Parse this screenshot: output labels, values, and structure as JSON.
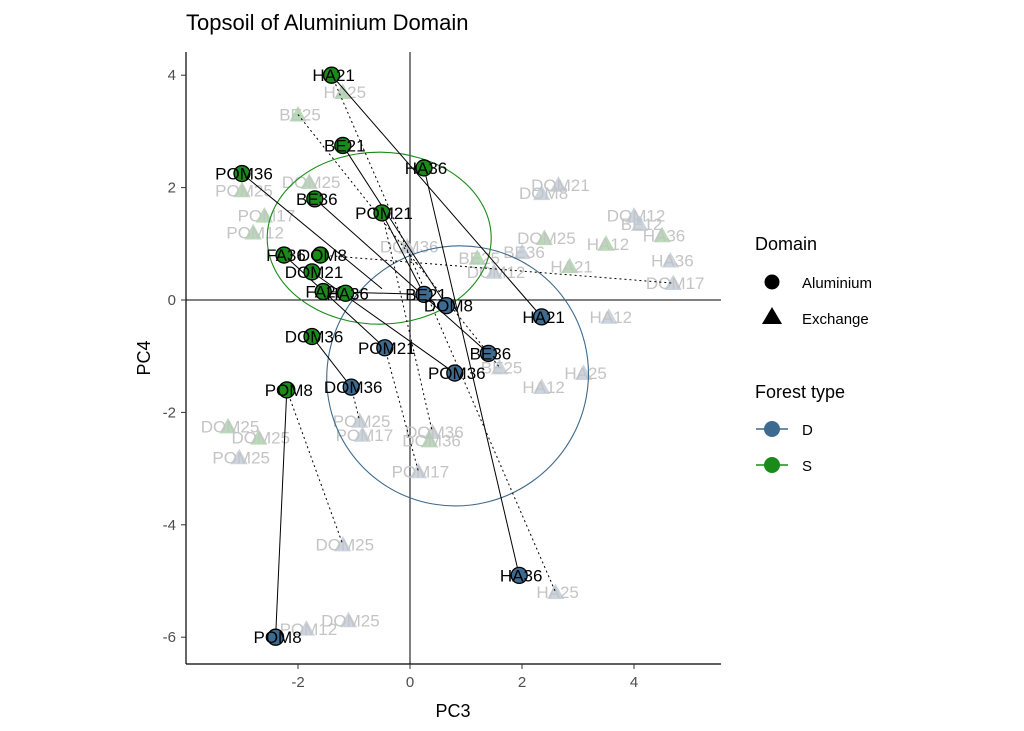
{
  "chart_data": {
    "type": "scatter",
    "title": "Topsoil of Aluminium Domain",
    "xlabel": "PC3",
    "ylabel": "PC4",
    "xlim": [
      -4.0,
      5.5
    ],
    "ylim": [
      -6.45,
      4.35
    ],
    "xticks": [
      -2,
      0,
      2,
      4
    ],
    "yticks": [
      -6,
      -4,
      -2,
      0,
      2,
      4
    ],
    "grid": false,
    "reference_lines": {
      "x": 0,
      "y": 0
    },
    "legend": [
      {
        "title": "Domain",
        "items": [
          {
            "label": "Aluminium",
            "shape": "circle"
          },
          {
            "label": "Exchange",
            "shape": "triangle"
          }
        ]
      },
      {
        "title": "Forest type",
        "items": [
          {
            "label": "D",
            "color": "#3d6a8e"
          },
          {
            "label": "S",
            "color": "#1a8a1a"
          }
        ]
      }
    ],
    "legend_placement": "right",
    "colors": {
      "D": "#3d6a8e",
      "S": "#1a8a1a"
    },
    "ellipses": [
      {
        "group": "S",
        "center": [
          -0.55,
          1.1
        ],
        "rx": 2.0,
        "ry": 1.53,
        "angle": 0
      },
      {
        "group": "D",
        "center": [
          0.85,
          -1.35
        ],
        "rx": 2.35,
        "ry": 2.3,
        "angle": -35
      }
    ],
    "highlighted_points": [
      {
        "label": "HA21",
        "x": -1.4,
        "y": 4.0,
        "forest": "S",
        "domain": "Aluminium"
      },
      {
        "label": "BE21",
        "x": -1.2,
        "y": 2.75,
        "forest": "S",
        "domain": "Aluminium"
      },
      {
        "label": "HA36",
        "x": 0.25,
        "y": 2.35,
        "forest": "S",
        "domain": "Aluminium"
      },
      {
        "label": "POM36",
        "x": -3.0,
        "y": 2.25,
        "forest": "S",
        "domain": "Aluminium"
      },
      {
        "label": "BE36",
        "x": -1.7,
        "y": 1.8,
        "forest": "S",
        "domain": "Aluminium"
      },
      {
        "label": "POM21",
        "x": -0.5,
        "y": 1.55,
        "forest": "S",
        "domain": "Aluminium"
      },
      {
        "label": "FA36",
        "x": -2.25,
        "y": 0.8,
        "forest": "S",
        "domain": "Aluminium"
      },
      {
        "label": "DOM8",
        "x": -1.6,
        "y": 0.8,
        "forest": "S",
        "domain": "Aluminium"
      },
      {
        "label": "DOM21",
        "x": -1.75,
        "y": 0.5,
        "forest": "S",
        "domain": "Aluminium"
      },
      {
        "label": "FA21",
        "x": -1.55,
        "y": 0.15,
        "forest": "S",
        "domain": "Aluminium"
      },
      {
        "label": "HA36",
        "x": -1.15,
        "y": 0.12,
        "forest": "S",
        "domain": "Aluminium"
      },
      {
        "label": "DOM36",
        "x": -1.75,
        "y": -0.65,
        "forest": "S",
        "domain": "Aluminium"
      },
      {
        "label": "POM8",
        "x": -2.2,
        "y": -1.6,
        "forest": "S",
        "domain": "Aluminium"
      },
      {
        "label": "BE21",
        "x": 0.25,
        "y": 0.1,
        "forest": "D",
        "domain": "Aluminium"
      },
      {
        "label": "DOM8",
        "x": 0.65,
        "y": -0.1,
        "forest": "D",
        "domain": "Aluminium"
      },
      {
        "label": "HA21",
        "x": 2.35,
        "y": -0.3,
        "forest": "D",
        "domain": "Aluminium"
      },
      {
        "label": "POM21",
        "x": -0.45,
        "y": -0.85,
        "forest": "D",
        "domain": "Aluminium"
      },
      {
        "label": "BE36",
        "x": 1.4,
        "y": -0.95,
        "forest": "D",
        "domain": "Aluminium"
      },
      {
        "label": "POM36",
        "x": 0.8,
        "y": -1.3,
        "forest": "D",
        "domain": "Aluminium"
      },
      {
        "label": "DOM36",
        "x": -1.05,
        "y": -1.55,
        "forest": "D",
        "domain": "Aluminium"
      },
      {
        "label": "HA36",
        "x": 1.95,
        "y": -4.9,
        "forest": "D",
        "domain": "Aluminium"
      },
      {
        "label": "POM8",
        "x": -2.4,
        "y": -6.0,
        "forest": "D",
        "domain": "Aluminium"
      }
    ],
    "faded_points": [
      {
        "label": "HA25",
        "x": -1.2,
        "y": 3.7,
        "forest": "S",
        "domain": "Exchange"
      },
      {
        "label": "BE25",
        "x": -2.0,
        "y": 3.3,
        "forest": "S",
        "domain": "Exchange"
      },
      {
        "label": "DOM25",
        "x": -1.8,
        "y": 2.1,
        "forest": "S",
        "domain": "Exchange"
      },
      {
        "label": "POM25",
        "x": -3.0,
        "y": 1.95,
        "forest": "S",
        "domain": "Exchange"
      },
      {
        "label": "POM17",
        "x": -2.6,
        "y": 1.5,
        "forest": "S",
        "domain": "Exchange"
      },
      {
        "label": "POM12",
        "x": -2.8,
        "y": 1.2,
        "forest": "S",
        "domain": "Exchange"
      },
      {
        "label": "DOM21",
        "x": 2.65,
        "y": 2.05,
        "forest": "D",
        "domain": "Exchange"
      },
      {
        "label": "DOM8",
        "x": 2.35,
        "y": 1.9,
        "forest": "D",
        "domain": "Exchange"
      },
      {
        "label": "DOM12",
        "x": 4.0,
        "y": 1.5,
        "forest": "D",
        "domain": "Exchange"
      },
      {
        "label": "BE12",
        "x": 4.1,
        "y": 1.35,
        "forest": "D",
        "domain": "Exchange"
      },
      {
        "label": "HA36",
        "x": 4.5,
        "y": 1.15,
        "forest": "S",
        "domain": "Exchange"
      },
      {
        "label": "HA12",
        "x": 3.5,
        "y": 1.0,
        "forest": "S",
        "domain": "Exchange"
      },
      {
        "label": "HA36",
        "x": 4.65,
        "y": 0.7,
        "forest": "D",
        "domain": "Exchange"
      },
      {
        "label": "DOM17",
        "x": 4.7,
        "y": 0.3,
        "forest": "D",
        "domain": "Exchange"
      },
      {
        "label": "HA21",
        "x": 2.85,
        "y": 0.6,
        "forest": "S",
        "domain": "Exchange"
      },
      {
        "label": "BE36",
        "x": 2.0,
        "y": 0.85,
        "forest": "D",
        "domain": "Exchange"
      },
      {
        "label": "BE25",
        "x": 1.2,
        "y": 0.75,
        "forest": "S",
        "domain": "Exchange"
      },
      {
        "label": "DOM25",
        "x": 2.4,
        "y": 1.1,
        "forest": "S",
        "domain": "Exchange"
      },
      {
        "label": "DOM36",
        "x": -0.05,
        "y": 0.95,
        "forest": "D",
        "domain": "Exchange"
      },
      {
        "label": "DOM12",
        "x": 1.5,
        "y": 0.5,
        "forest": "D",
        "domain": "Exchange"
      },
      {
        "label": "HA12",
        "x": 3.55,
        "y": -0.3,
        "forest": "D",
        "domain": "Exchange"
      },
      {
        "label": "HA25",
        "x": 3.1,
        "y": -1.3,
        "forest": "D",
        "domain": "Exchange"
      },
      {
        "label": "HA12",
        "x": 2.35,
        "y": -1.55,
        "forest": "D",
        "domain": "Exchange"
      },
      {
        "label": "BE25",
        "x": 1.6,
        "y": -1.2,
        "forest": "D",
        "domain": "Exchange"
      },
      {
        "label": "POM25",
        "x": -0.9,
        "y": -2.15,
        "forest": "D",
        "domain": "Exchange"
      },
      {
        "label": "POM17",
        "x": -0.85,
        "y": -2.4,
        "forest": "D",
        "domain": "Exchange"
      },
      {
        "label": "DOM36",
        "x": 0.4,
        "y": -2.35,
        "forest": "D",
        "domain": "Exchange"
      },
      {
        "label": "DOM36",
        "x": 0.35,
        "y": -2.5,
        "forest": "S",
        "domain": "Exchange"
      },
      {
        "label": "POM17",
        "x": 0.15,
        "y": -3.05,
        "forest": "D",
        "domain": "Exchange"
      },
      {
        "label": "DOM25",
        "x": -3.25,
        "y": -2.25,
        "forest": "S",
        "domain": "Exchange"
      },
      {
        "label": "DOM25",
        "x": -2.7,
        "y": -2.45,
        "forest": "S",
        "domain": "Exchange"
      },
      {
        "label": "POM25",
        "x": -3.05,
        "y": -2.8,
        "forest": "D",
        "domain": "Exchange"
      },
      {
        "label": "DOM25",
        "x": -1.2,
        "y": -4.35,
        "forest": "D",
        "domain": "Exchange"
      },
      {
        "label": "HA25",
        "x": 2.6,
        "y": -5.2,
        "forest": "D",
        "domain": "Exchange"
      },
      {
        "label": "DOM25",
        "x": -1.1,
        "y": -5.7,
        "forest": "D",
        "domain": "Exchange"
      },
      {
        "label": "POM12",
        "x": -1.85,
        "y": -5.85,
        "forest": "D",
        "domain": "Exchange"
      }
    ],
    "solid_connections": [
      [
        [
          -1.4,
          4.0
        ],
        [
          2.35,
          -0.3
        ]
      ],
      [
        [
          -1.2,
          2.75
        ],
        [
          0.65,
          -0.1
        ]
      ],
      [
        [
          0.25,
          2.35
        ],
        [
          1.95,
          -4.9
        ]
      ],
      [
        [
          -3.0,
          2.25
        ],
        [
          -0.5,
          0.2
        ]
      ],
      [
        [
          -1.7,
          1.8
        ],
        [
          1.4,
          -0.95
        ]
      ],
      [
        [
          -0.5,
          1.55
        ],
        [
          0.25,
          0.1
        ]
      ],
      [
        [
          -2.25,
          0.8
        ],
        [
          -0.45,
          -0.85
        ]
      ],
      [
        [
          -1.75,
          0.5
        ],
        [
          0.8,
          -1.3
        ]
      ],
      [
        [
          -2.2,
          -1.6
        ],
        [
          -2.4,
          -6.0
        ]
      ],
      [
        [
          -1.75,
          -0.65
        ],
        [
          -1.05,
          -1.55
        ]
      ],
      [
        [
          -1.55,
          0.15
        ],
        [
          0.25,
          0.1
        ]
      ]
    ],
    "dotted_connections": [
      [
        [
          -1.4,
          4.0
        ],
        [
          2.6,
          -5.2
        ]
      ],
      [
        [
          -2.0,
          3.3
        ],
        [
          1.6,
          -1.2
        ]
      ],
      [
        [
          -1.05,
          -1.55
        ],
        [
          -0.9,
          -2.15
        ]
      ],
      [
        [
          -2.2,
          -1.6
        ],
        [
          -1.2,
          -4.35
        ]
      ],
      [
        [
          -0.45,
          -0.85
        ],
        [
          0.15,
          -3.05
        ]
      ],
      [
        [
          -1.6,
          0.8
        ],
        [
          4.7,
          0.3
        ]
      ],
      [
        [
          -0.5,
          1.55
        ],
        [
          0.4,
          -2.35
        ]
      ]
    ]
  }
}
